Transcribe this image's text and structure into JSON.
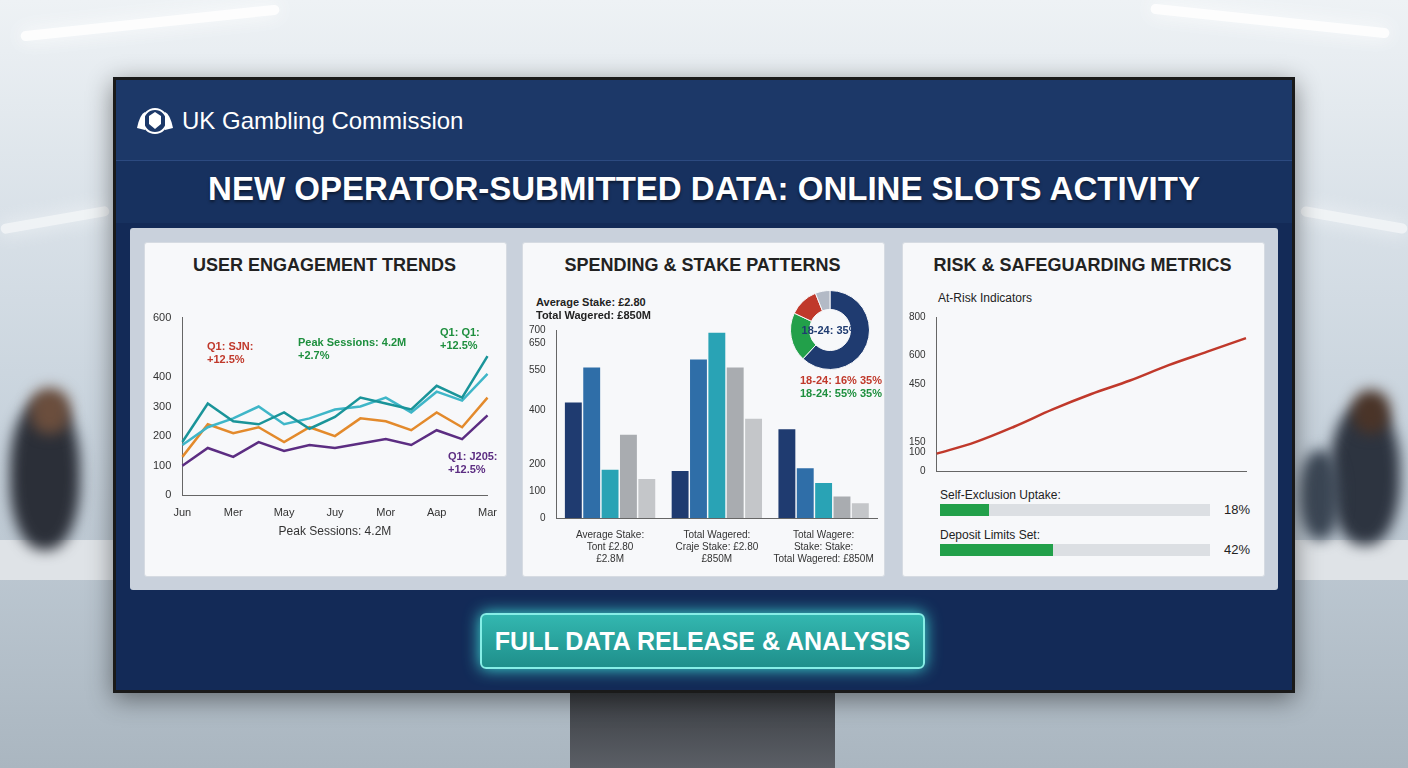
{
  "header": {
    "organisation": "UK Gambling Commission",
    "title": "NEW OPERATOR-SUBMITTED DATA: ONLINE SLOTS ACTIVITY"
  },
  "chart_data": [
    {
      "type": "line",
      "title": "USER ENGAGEMENT TRENDS",
      "x_label": "Peak Sessions: 4.2M",
      "categories": [
        "Jun",
        null,
        "Mer",
        null,
        "May",
        null,
        "Juy",
        null,
        "Mor",
        null,
        "Aap",
        null,
        "Mar"
      ],
      "series": [
        {
          "color": "#1a9499",
          "values": [
            180,
            310,
            250,
            240,
            280,
            225,
            265,
            330,
            310,
            290,
            370,
            330,
            470
          ]
        },
        {
          "color": "#3fb6c8",
          "values": [
            170,
            230,
            260,
            300,
            240,
            260,
            290,
            300,
            330,
            280,
            350,
            320,
            410
          ]
        },
        {
          "color": "#e38a2c",
          "values": [
            130,
            240,
            210,
            230,
            180,
            230,
            200,
            260,
            250,
            220,
            280,
            230,
            330
          ]
        },
        {
          "color": "#5c2d82",
          "values": [
            100,
            160,
            130,
            180,
            150,
            170,
            160,
            175,
            190,
            170,
            220,
            190,
            270
          ]
        }
      ],
      "ylim": [
        0,
        600
      ],
      "yticks": [
        0,
        100,
        200,
        300,
        400,
        600
      ],
      "grid": false,
      "annotations": [
        {
          "text": "Q1: SJN:\n+12.5%",
          "color": "#c0392b"
        },
        {
          "text": "Peak Sessions: 4.2M\n+2.7%",
          "color": "#1e8f3e"
        },
        {
          "text": "Q1: Q1:\n+12.5%",
          "color": "#1e8f3e"
        },
        {
          "text": "Q1: J205:\n+12.5%",
          "color": "#5c2d82"
        }
      ]
    },
    {
      "type": "bar",
      "title": "SPENDING & STAKE PATTERNS",
      "categories": [
        "Average Stake:\nTont £2.80\n£2.8M",
        "Total Wagered:\nCraje Stake: £2.80\n£850M",
        "Total Wagere:\nStake: Stake:\nTotal Wagered: £850M"
      ],
      "series": [
        {
          "color": "#1f3b70",
          "values": [
            430,
            175,
            330
          ]
        },
        {
          "color": "#2f6ea8",
          "values": [
            560,
            590,
            185
          ]
        },
        {
          "color": "#29a3b5",
          "values": [
            180,
            690,
            130
          ]
        },
        {
          "color": "#a9acb0",
          "values": [
            310,
            560,
            80
          ]
        },
        {
          "color": "#c4c6c9",
          "values": [
            145,
            370,
            55
          ]
        }
      ],
      "ylim": [
        0,
        700
      ],
      "yticks": [
        0,
        100,
        200,
        400,
        550,
        650,
        700
      ],
      "grid": false,
      "annotations": [
        {
          "text": "Average Stake: £2.80",
          "color": "#222222"
        },
        {
          "text": "Total Wagered: £850M",
          "color": "#222222"
        }
      ]
    },
    {
      "type": "doughnut",
      "values": [
        62,
        20,
        12,
        6
      ],
      "colors": [
        "#1f3b70",
        "#22a04a",
        "#c0392b",
        "#b3bac6"
      ],
      "annotations": [
        {
          "text": "18-24: 35%",
          "color": "#1f3b70"
        },
        {
          "text": "18-24: 16% 35%",
          "color": "#c0392b"
        },
        {
          "text": "18-24: 55% 35%",
          "color": "#1e8f3e"
        }
      ]
    },
    {
      "type": "line",
      "title": "RISK & SAFEGUARDING METRICS",
      "subtitle": "At-Risk Indicators",
      "categories": [
        null,
        null,
        null,
        null,
        null,
        null,
        null,
        null,
        null
      ],
      "values": [
        90,
        150,
        230,
        320,
        400,
        470,
        550,
        620,
        690
      ],
      "color": "#c0392b",
      "ylim": [
        0,
        800
      ],
      "yticks": [
        0,
        100,
        150,
        450,
        600,
        800
      ],
      "grid": false,
      "tick_labels": "y"
    }
  ],
  "safeguarding": {
    "range": [
      0,
      100
    ],
    "items": [
      {
        "label": "Self-Exclusion Uptake:",
        "value": 18,
        "value_label": "18%",
        "color": "#22a04a"
      },
      {
        "label": "Deposit Limits Set:",
        "value": 42,
        "value_label": "42%",
        "color": "#22a04a"
      }
    ]
  },
  "button": "FULL DATA RELEASE & ANALYSIS"
}
